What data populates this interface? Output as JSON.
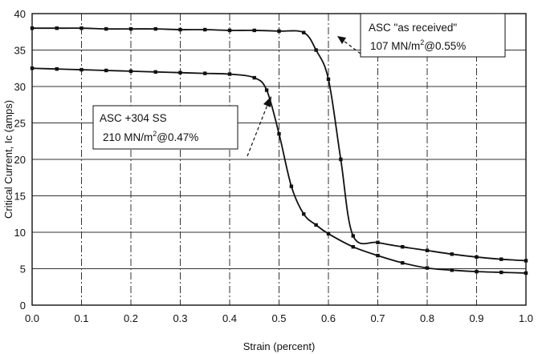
{
  "chart_data": {
    "type": "line",
    "title": "",
    "xlabel": "Strain (percent)",
    "ylabel": "Critical Current, Ic (amps)",
    "xlim": [
      0,
      1.0
    ],
    "ylim": [
      0,
      40
    ],
    "xticks": [
      "0.0",
      "0.1",
      "0.2",
      "0.3",
      "0.4",
      "0.5",
      "0.6",
      "0.7",
      "0.8",
      "0.9",
      "1.0"
    ],
    "yticks": [
      "0",
      "5",
      "10",
      "15",
      "20",
      "25",
      "30",
      "35",
      "40"
    ],
    "grid": true,
    "series": [
      {
        "x": [
          0.0,
          0.05,
          0.1,
          0.15,
          0.2,
          0.25,
          0.3,
          0.35,
          0.4,
          0.45,
          0.5,
          0.55,
          0.575,
          0.6,
          0.625,
          0.65,
          0.7,
          0.75,
          0.8,
          0.85,
          0.9,
          0.95,
          1.0
        ],
        "values": [
          38.0,
          38.0,
          38.0,
          37.9,
          37.9,
          37.9,
          37.8,
          37.8,
          37.7,
          37.7,
          37.6,
          37.4,
          35.0,
          31.0,
          20.0,
          9.5,
          8.6,
          8.0,
          7.5,
          7.0,
          6.6,
          6.3,
          6.1
        ]
      },
      {
        "x": [
          0.0,
          0.05,
          0.1,
          0.15,
          0.2,
          0.25,
          0.3,
          0.35,
          0.4,
          0.45,
          0.475,
          0.5,
          0.525,
          0.55,
          0.575,
          0.6,
          0.65,
          0.7,
          0.75,
          0.8,
          0.85,
          0.9,
          0.95,
          1.0
        ],
        "values": [
          32.5,
          32.4,
          32.3,
          32.2,
          32.1,
          32.0,
          31.9,
          31.8,
          31.7,
          31.2,
          29.5,
          23.5,
          16.3,
          12.5,
          11.0,
          9.8,
          8.0,
          6.8,
          5.8,
          5.1,
          4.8,
          4.6,
          4.5,
          4.4
        ]
      }
    ],
    "annotations": [
      {
        "line1": "ASC \"as received\"",
        "line2_pre": "107 MN/m",
        "line2_sup": "2",
        "line2_post": "@0.55%"
      },
      {
        "line1": "ASC +304 SS",
        "line2_pre": "210 MN/m",
        "line2_sup": "2",
        "line2_post": "@0.47%"
      }
    ],
    "colors": {
      "line": "#111111",
      "grid": "#333333",
      "background": "#ffffff"
    }
  }
}
